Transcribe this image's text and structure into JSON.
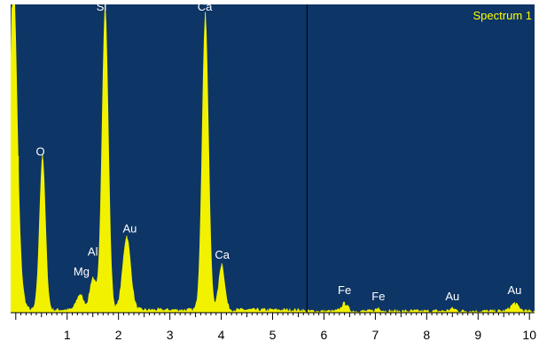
{
  "chart_data": {
    "type": "area",
    "title": "Spectrum 1",
    "xlabel": "",
    "ylabel": "",
    "xlim": [
      -0.1,
      10.1
    ],
    "ylim": [
      0,
      100
    ],
    "grid": false,
    "xticks": [
      1,
      2,
      3,
      4,
      5,
      6,
      7,
      8,
      9,
      10
    ],
    "cursor_x": 5.67,
    "baseline": 1.0,
    "peaks": [
      {
        "x": -0.05,
        "height": 105,
        "width": 0.07
      },
      {
        "x": 0.05,
        "height": 12,
        "width": 0.08
      },
      {
        "x": 0.52,
        "height": 50.5,
        "width": 0.06
      },
      {
        "x": 1.25,
        "height": 5,
        "width": 0.07
      },
      {
        "x": 1.5,
        "height": 10.5,
        "width": 0.06
      },
      {
        "x": 1.74,
        "height": 99,
        "width": 0.065
      },
      {
        "x": 2.16,
        "height": 24,
        "width": 0.08
      },
      {
        "x": 3.69,
        "height": 96.5,
        "width": 0.065
      },
      {
        "x": 4.01,
        "height": 15,
        "width": 0.06
      },
      {
        "x": 6.4,
        "height": 2.5,
        "width": 0.06
      },
      {
        "x": 7.06,
        "height": 0.8,
        "width": 0.06
      },
      {
        "x": 8.5,
        "height": 0.8,
        "width": 0.06
      },
      {
        "x": 9.71,
        "height": 2.4,
        "width": 0.08
      }
    ],
    "annotations": [
      {
        "text": "Si",
        "x": 1.67,
        "y": 98
      },
      {
        "text": "Ca",
        "x": 3.68,
        "y": 98
      },
      {
        "text": "O",
        "x": 0.48,
        "y": 51
      },
      {
        "text": "Au",
        "x": 2.22,
        "y": 26
      },
      {
        "text": "Al",
        "x": 1.5,
        "y": 18.5
      },
      {
        "text": "Ca",
        "x": 4.02,
        "y": 17.5
      },
      {
        "text": "Mg",
        "x": 1.28,
        "y": 12
      },
      {
        "text": "Fe",
        "x": 6.4,
        "y": 6
      },
      {
        "text": "Fe",
        "x": 7.06,
        "y": 4
      },
      {
        "text": "Au",
        "x": 8.5,
        "y": 4
      },
      {
        "text": "Au",
        "x": 9.71,
        "y": 6
      }
    ],
    "colors": {
      "background": "#0d3566",
      "spectrum": "#f2f200",
      "label": "#ffffff",
      "title": "#ffff00",
      "cursor": "#000000",
      "axis": "#000000"
    }
  }
}
